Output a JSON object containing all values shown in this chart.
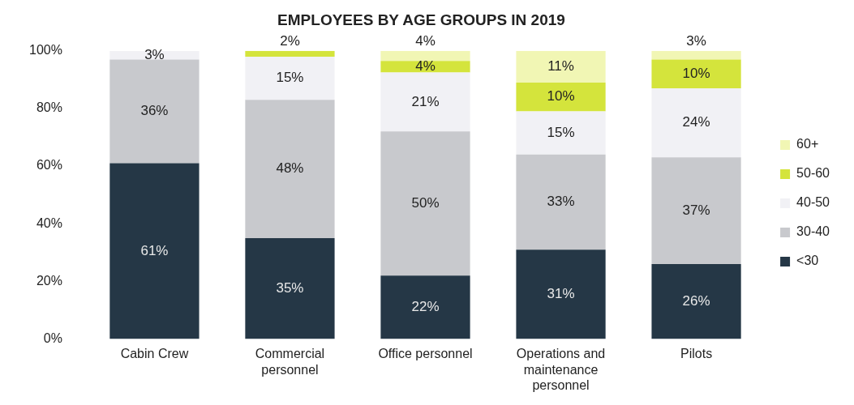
{
  "chart_data": {
    "type": "bar",
    "title": "EMPLOYEES BY AGE GROUPS IN 2019",
    "stacked": true,
    "categories": [
      "Cabin Crew",
      "Commercial personnel",
      "Office personnel",
      "Operations and maintenance personnel",
      "Pilots"
    ],
    "series": [
      {
        "name": "<30",
        "color": "#253746",
        "values": [
          61,
          35,
          22,
          31,
          26
        ],
        "value_labels": [
          "61%",
          "35%",
          "22%",
          "31%",
          "26%"
        ]
      },
      {
        "name": "30-40",
        "color": "#c8c9cd",
        "values": [
          36,
          48,
          50,
          33,
          37
        ],
        "value_labels": [
          "36%",
          "48%",
          "50%",
          "33%",
          "37%"
        ]
      },
      {
        "name": "40-50",
        "color": "#f1f1f5",
        "values": [
          3,
          15,
          20.5,
          15,
          24
        ],
        "value_labels": [
          "3%",
          "15%",
          "21%",
          "15%",
          "24%"
        ]
      },
      {
        "name": "50-60",
        "color": "#d4e43c",
        "values": [
          null,
          2,
          4,
          10,
          10
        ],
        "value_labels": [
          null,
          "2%",
          "4%",
          "10%",
          "10%"
        ]
      },
      {
        "name": "60+",
        "color": "#f1f6b4",
        "values": [
          null,
          null,
          3.5,
          11,
          3
        ],
        "value_labels": [
          null,
          null,
          "4%",
          "11%",
          "3%"
        ]
      }
    ],
    "ylim": [
      0,
      100
    ],
    "yticks": [
      {
        "value": 0,
        "label": "0%"
      },
      {
        "value": 20,
        "label": "20%"
      },
      {
        "value": 40,
        "label": "40%"
      },
      {
        "value": 60,
        "label": "60%"
      },
      {
        "value": 80,
        "label": "80%"
      },
      {
        "value": 100,
        "label": "100%"
      }
    ],
    "grid": false,
    "legend": "right"
  }
}
